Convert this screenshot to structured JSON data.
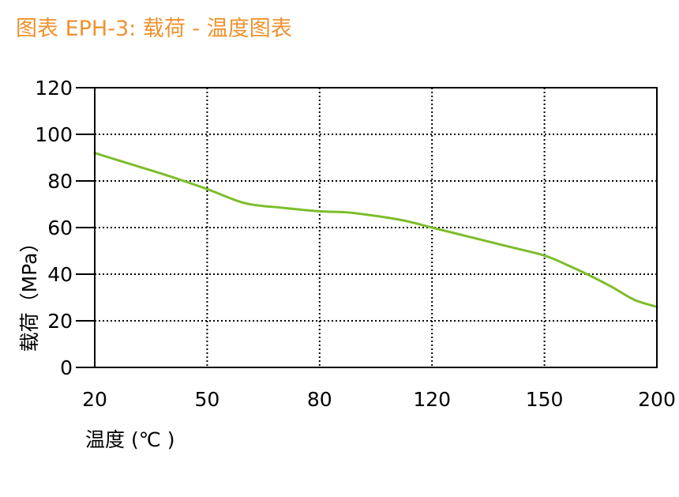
{
  "title": "图表 EPH-3: 载荷 - 温度图表",
  "colors": {
    "title": "#f0912e",
    "line": "#7dbd2c",
    "axis": "#000000",
    "grid": "#000000"
  },
  "chart_data": {
    "type": "line",
    "title": "图表 EPH-3: 载荷 - 温度图表",
    "xlabel": "温度 (℃ )",
    "ylabel": "载荷（MPa）",
    "x_ticks": [
      20,
      50,
      80,
      120,
      150,
      200
    ],
    "y_ticks": [
      0,
      20,
      40,
      60,
      80,
      100,
      120
    ],
    "xlim": [
      20,
      200
    ],
    "ylim": [
      0,
      120
    ],
    "x_scale": "categorical-ticks",
    "grid": true,
    "grid_style": "dotted",
    "legend": "none",
    "series": [
      {
        "x": [
          20,
          30,
          40,
          50,
          60,
          70,
          80,
          90,
          100,
          110,
          120,
          130,
          140,
          150,
          160,
          170,
          180,
          190,
          200
        ],
        "y": [
          92,
          87,
          82,
          76.5,
          70.5,
          68.5,
          67,
          66.5,
          65,
          63,
          60,
          56,
          52,
          48,
          44,
          39.5,
          34.5,
          29,
          26
        ]
      }
    ]
  }
}
